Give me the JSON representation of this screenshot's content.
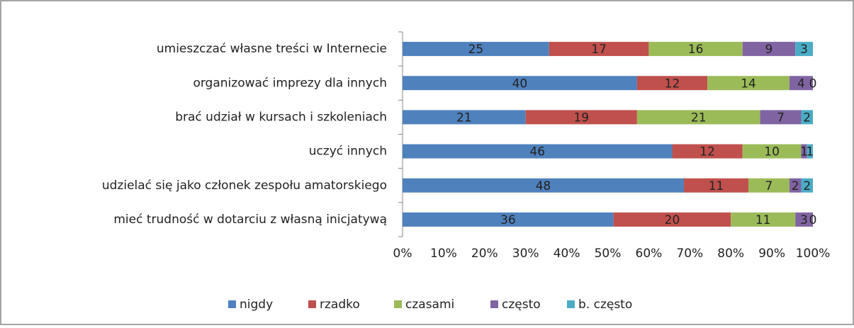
{
  "chart_data": {
    "type": "stacked-bar-horizontal-percent",
    "categories": [
      "umieszczać własne treści w Internecie",
      "organizować imprezy dla innych",
      "brać udział w kursach i szkoleniach",
      "uczyć innych",
      "udzielać się jako członek zespołu amatorskiego",
      "mieć trudność w dotarciu z własną inicjatywą"
    ],
    "series": [
      {
        "name": "nigdy",
        "color": "#4f81bd",
        "values": [
          25,
          40,
          21,
          46,
          48,
          36
        ]
      },
      {
        "name": "rzadko",
        "color": "#c0504d",
        "values": [
          17,
          12,
          19,
          12,
          11,
          20
        ]
      },
      {
        "name": "czasami",
        "color": "#9bbb59",
        "values": [
          16,
          14,
          21,
          10,
          7,
          11
        ]
      },
      {
        "name": "często",
        "color": "#8064a2",
        "values": [
          9,
          4,
          7,
          1,
          2,
          3
        ]
      },
      {
        "name": "b. często",
        "color": "#4bacc6",
        "values": [
          3,
          0,
          2,
          1,
          2,
          0
        ]
      }
    ],
    "xlim": [
      0,
      100
    ],
    "xticks": [
      {
        "value": 0,
        "label": "0%"
      },
      {
        "value": 10,
        "label": "10%"
      },
      {
        "value": 20,
        "label": "20%"
      },
      {
        "value": 30,
        "label": "30%"
      },
      {
        "value": 40,
        "label": "40%"
      },
      {
        "value": 50,
        "label": "50%"
      },
      {
        "value": 60,
        "label": "60%"
      },
      {
        "value": 70,
        "label": "70%"
      },
      {
        "value": 80,
        "label": "80%"
      },
      {
        "value": 90,
        "label": "90%"
      },
      {
        "value": 100,
        "label": "100%"
      }
    ],
    "legend": "bottom",
    "grid": false
  }
}
